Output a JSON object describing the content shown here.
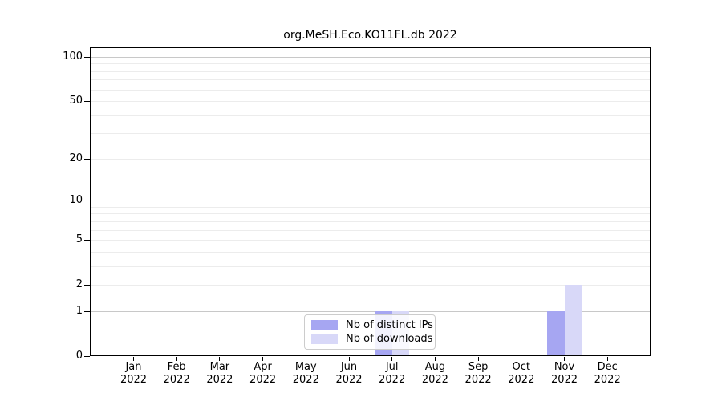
{
  "title": "org.MeSH.Eco.KO11FL.db 2022",
  "chart_data": {
    "type": "bar",
    "title": "org.MeSH.Eco.KO11FL.db 2022",
    "x_months": [
      "Jan",
      "Feb",
      "Mar",
      "Apr",
      "May",
      "Jun",
      "Jul",
      "Aug",
      "Sep",
      "Oct",
      "Nov",
      "Dec"
    ],
    "x_year": "2022",
    "categories": [
      "Jan 2022",
      "Feb 2022",
      "Mar 2022",
      "Apr 2022",
      "May 2022",
      "Jun 2022",
      "Jul 2022",
      "Aug 2022",
      "Sep 2022",
      "Oct 2022",
      "Nov 2022",
      "Dec 2022"
    ],
    "series": [
      {
        "name": "Nb of distinct IPs",
        "color": "#a6a6f2",
        "values": [
          0,
          0,
          0,
          0,
          0,
          0,
          1,
          0,
          0,
          0,
          1,
          0
        ]
      },
      {
        "name": "Nb of downloads",
        "color": "#d8d8f8",
        "values": [
          0,
          0,
          0,
          0,
          0,
          0,
          1,
          0,
          0,
          0,
          2,
          0
        ]
      }
    ],
    "xlabel": "",
    "ylabel": "",
    "y_scale": "log1p",
    "ylim": [
      0,
      116
    ],
    "y_ticks": [
      0,
      1,
      2,
      5,
      10,
      20,
      50,
      100
    ],
    "y_tick_labels": [
      "0",
      "1",
      "2",
      "5",
      "10",
      "20",
      "50",
      "100"
    ],
    "y_major_gridlines": [
      1,
      10,
      100
    ],
    "y_minor_gridlines": [
      2,
      3,
      4,
      5,
      6,
      7,
      8,
      9,
      20,
      30,
      40,
      50,
      60,
      70,
      80,
      90
    ],
    "grid": true,
    "legend_position": "bottom-center"
  },
  "colors": {
    "bar_distinct_ips": "#a6a6f2",
    "bar_downloads": "#d8d8f8",
    "major_grid": "#c8c8c8",
    "minor_grid": "#ececec",
    "axis": "#000000",
    "legend_border": "#cccccc"
  }
}
